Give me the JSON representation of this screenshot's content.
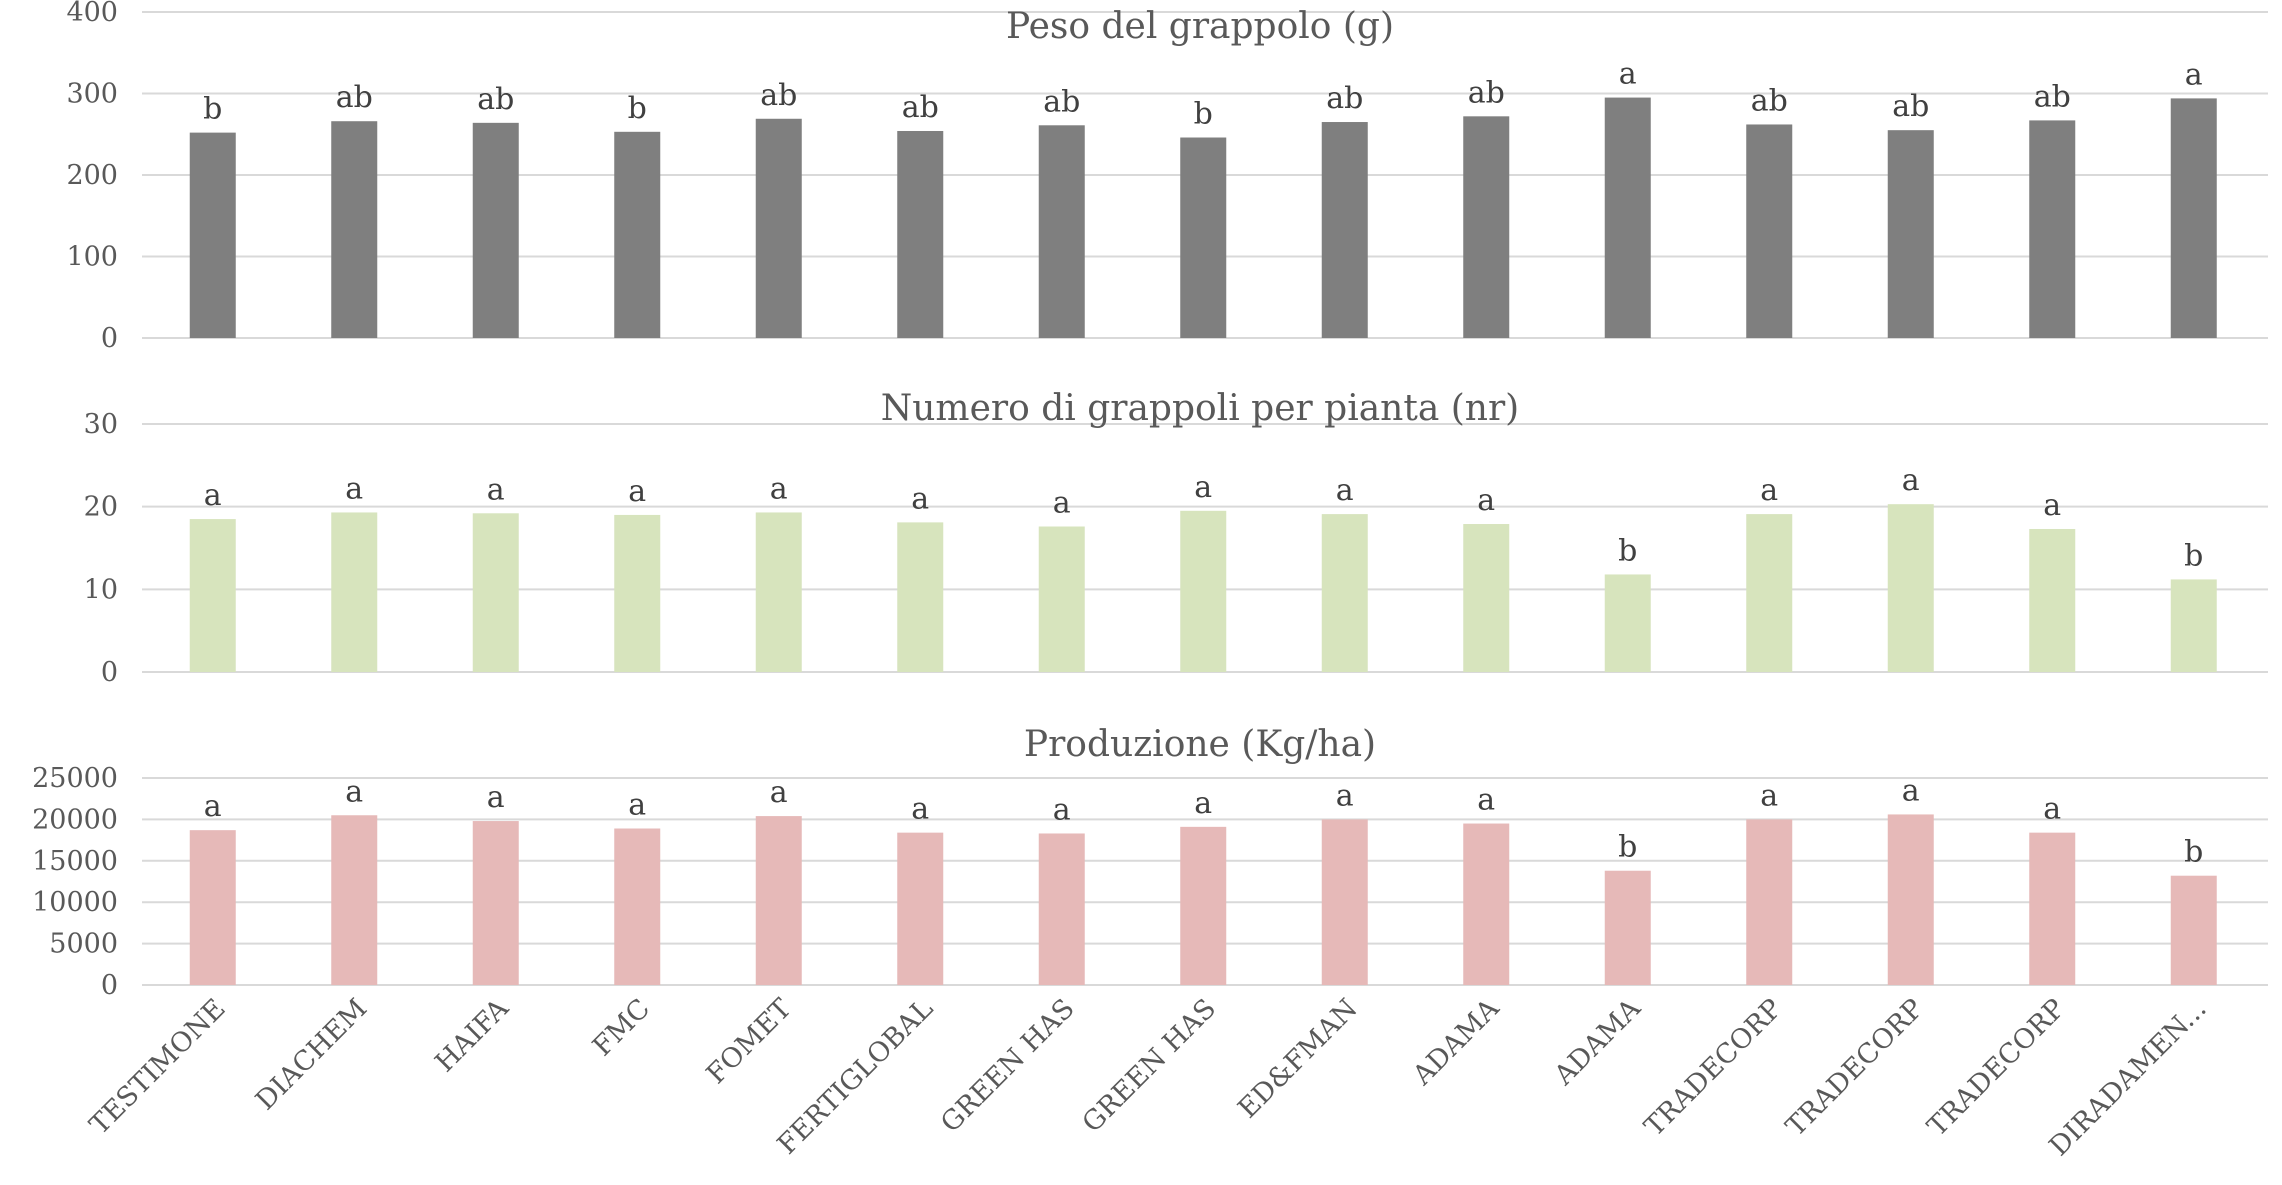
{
  "colors": {
    "chart1_bar": "#7f7f7f",
    "chart2_bar": "#d7e4bd",
    "chart3_bar": "#e6b9b8",
    "grid": "#d9d9d9",
    "text": "#595959"
  },
  "chart_data": [
    {
      "type": "bar",
      "title": "Peso del grappolo (g)",
      "categories": [
        "TESTIMONE",
        "DIACHEM",
        "HAIFA",
        "FMC",
        "FOMET",
        "FERTIGLOBAL",
        "GREEN HAS",
        "GREEN HAS",
        "ED&FMAN",
        "ADAMA",
        "ADAMA",
        "TRADECORP",
        "TRADECORP",
        "TRADECORP",
        "DIRADAMEN..."
      ],
      "values": [
        252,
        266,
        264,
        253,
        269,
        254,
        261,
        246,
        265,
        272,
        295,
        262,
        255,
        267,
        294
      ],
      "labels": [
        "b",
        "ab",
        "ab",
        "b",
        "ab",
        "ab",
        "ab",
        "b",
        "ab",
        "ab",
        "a",
        "ab",
        "ab",
        "ab",
        "a"
      ],
      "ylim": [
        0,
        400
      ],
      "yticks": [
        "0",
        "100",
        "200",
        "300",
        "400"
      ],
      "grid": true
    },
    {
      "type": "bar",
      "title": "Numero di grappoli per pianta (nr)",
      "categories": [
        "TESTIMONE",
        "DIACHEM",
        "HAIFA",
        "FMC",
        "FOMET",
        "FERTIGLOBAL",
        "GREEN HAS",
        "GREEN HAS",
        "ED&FMAN",
        "ADAMA",
        "ADAMA",
        "TRADECORP",
        "TRADECORP",
        "TRADECORP",
        "DIRADAMEN..."
      ],
      "values": [
        18.5,
        19.3,
        19.2,
        19.0,
        19.3,
        18.1,
        17.6,
        19.5,
        19.1,
        17.9,
        11.8,
        19.1,
        20.3,
        17.3,
        11.2
      ],
      "labels": [
        "a",
        "a",
        "a",
        "a",
        "a",
        "a",
        "a",
        "a",
        "a",
        "a",
        "b",
        "a",
        "a",
        "a",
        "b"
      ],
      "ylim": [
        0,
        30
      ],
      "yticks": [
        "0",
        "10",
        "20",
        "30"
      ],
      "grid": true
    },
    {
      "type": "bar",
      "title": "Produzione  (Kg/ha)",
      "categories": [
        "TESTIMONE",
        "DIACHEM",
        "HAIFA",
        "FMC",
        "FOMET",
        "FERTIGLOBAL",
        "GREEN HAS",
        "GREEN HAS",
        "ED&FMAN",
        "ADAMA",
        "ADAMA",
        "TRADECORP",
        "TRADECORP",
        "TRADECORP",
        "DIRADAMEN..."
      ],
      "values": [
        18700,
        20500,
        19800,
        18900,
        20400,
        18400,
        18300,
        19100,
        20000,
        19500,
        13800,
        20000,
        20600,
        18400,
        13200
      ],
      "labels": [
        "a",
        "a",
        "a",
        "a",
        "a",
        "a",
        "a",
        "a",
        "a",
        "a",
        "b",
        "a",
        "a",
        "a",
        "b"
      ],
      "ylim": [
        0,
        25000
      ],
      "yticks": [
        "0",
        "5000",
        "10000",
        "15000",
        "20000",
        "25000"
      ],
      "grid": true
    }
  ]
}
